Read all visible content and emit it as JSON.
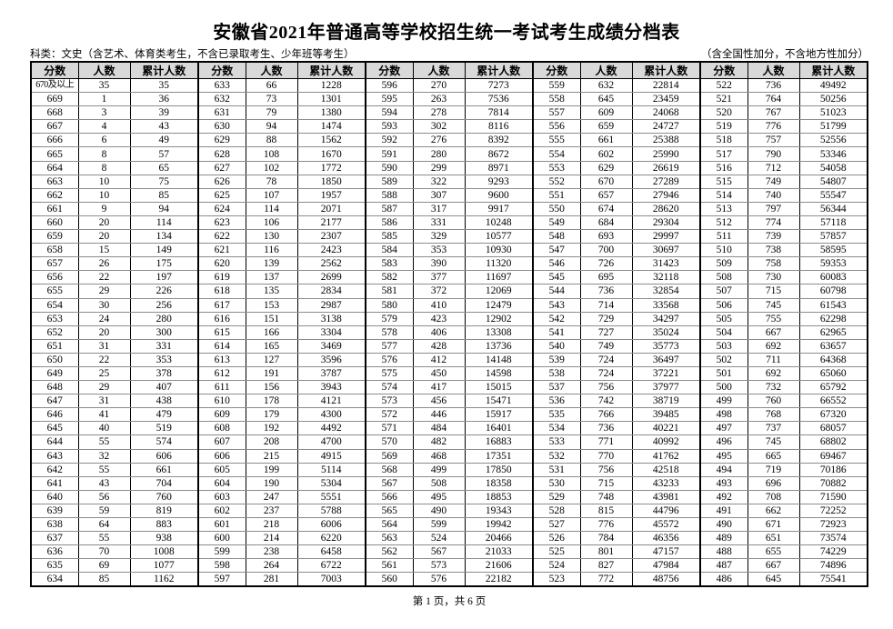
{
  "page": {
    "title": "安徽省2021年普通高等学校招生统一考试考生成绩分档表",
    "category_note": "科类：文史（含艺术、体育类考生，不含已录取考生、少年班等考生）",
    "bonus_note": "（含全国性加分，不含地方性加分）",
    "page_indicator": "第 1 页，共 6 页"
  },
  "colors": {
    "header_bg": "#d9d9d9",
    "grid_horizontal": "#8c8c8c",
    "grid_vertical": "#000000",
    "text": "#000000"
  },
  "table": {
    "headers": [
      "分数",
      "人数",
      "累计人数"
    ],
    "group_count": 5,
    "rows": [
      [
        "670及以上",
        "35",
        "35",
        "633",
        "66",
        "1228",
        "596",
        "270",
        "7273",
        "559",
        "632",
        "22814",
        "522",
        "736",
        "49492"
      ],
      [
        "669",
        "1",
        "36",
        "632",
        "73",
        "1301",
        "595",
        "263",
        "7536",
        "558",
        "645",
        "23459",
        "521",
        "764",
        "50256"
      ],
      [
        "668",
        "3",
        "39",
        "631",
        "79",
        "1380",
        "594",
        "278",
        "7814",
        "557",
        "609",
        "24068",
        "520",
        "767",
        "51023"
      ],
      [
        "667",
        "4",
        "43",
        "630",
        "94",
        "1474",
        "593",
        "302",
        "8116",
        "556",
        "659",
        "24727",
        "519",
        "776",
        "51799"
      ],
      [
        "666",
        "6",
        "49",
        "629",
        "88",
        "1562",
        "592",
        "276",
        "8392",
        "555",
        "661",
        "25388",
        "518",
        "757",
        "52556"
      ],
      [
        "665",
        "8",
        "57",
        "628",
        "108",
        "1670",
        "591",
        "280",
        "8672",
        "554",
        "602",
        "25990",
        "517",
        "790",
        "53346"
      ],
      [
        "664",
        "8",
        "65",
        "627",
        "102",
        "1772",
        "590",
        "299",
        "8971",
        "553",
        "629",
        "26619",
        "516",
        "712",
        "54058"
      ],
      [
        "663",
        "10",
        "75",
        "626",
        "78",
        "1850",
        "589",
        "322",
        "9293",
        "552",
        "670",
        "27289",
        "515",
        "749",
        "54807"
      ],
      [
        "662",
        "10",
        "85",
        "625",
        "107",
        "1957",
        "588",
        "307",
        "9600",
        "551",
        "657",
        "27946",
        "514",
        "740",
        "55547"
      ],
      [
        "661",
        "9",
        "94",
        "624",
        "114",
        "2071",
        "587",
        "317",
        "9917",
        "550",
        "674",
        "28620",
        "513",
        "797",
        "56344"
      ],
      [
        "660",
        "20",
        "114",
        "623",
        "106",
        "2177",
        "586",
        "331",
        "10248",
        "549",
        "684",
        "29304",
        "512",
        "774",
        "57118"
      ],
      [
        "659",
        "20",
        "134",
        "622",
        "130",
        "2307",
        "585",
        "329",
        "10577",
        "548",
        "693",
        "29997",
        "511",
        "739",
        "57857"
      ],
      [
        "658",
        "15",
        "149",
        "621",
        "116",
        "2423",
        "584",
        "353",
        "10930",
        "547",
        "700",
        "30697",
        "510",
        "738",
        "58595"
      ],
      [
        "657",
        "26",
        "175",
        "620",
        "139",
        "2562",
        "583",
        "390",
        "11320",
        "546",
        "726",
        "31423",
        "509",
        "758",
        "59353"
      ],
      [
        "656",
        "22",
        "197",
        "619",
        "137",
        "2699",
        "582",
        "377",
        "11697",
        "545",
        "695",
        "32118",
        "508",
        "730",
        "60083"
      ],
      [
        "655",
        "29",
        "226",
        "618",
        "135",
        "2834",
        "581",
        "372",
        "12069",
        "544",
        "736",
        "32854",
        "507",
        "715",
        "60798"
      ],
      [
        "654",
        "30",
        "256",
        "617",
        "153",
        "2987",
        "580",
        "410",
        "12479",
        "543",
        "714",
        "33568",
        "506",
        "745",
        "61543"
      ],
      [
        "653",
        "24",
        "280",
        "616",
        "151",
        "3138",
        "579",
        "423",
        "12902",
        "542",
        "729",
        "34297",
        "505",
        "755",
        "62298"
      ],
      [
        "652",
        "20",
        "300",
        "615",
        "166",
        "3304",
        "578",
        "406",
        "13308",
        "541",
        "727",
        "35024",
        "504",
        "667",
        "62965"
      ],
      [
        "651",
        "31",
        "331",
        "614",
        "165",
        "3469",
        "577",
        "428",
        "13736",
        "540",
        "749",
        "35773",
        "503",
        "692",
        "63657"
      ],
      [
        "650",
        "22",
        "353",
        "613",
        "127",
        "3596",
        "576",
        "412",
        "14148",
        "539",
        "724",
        "36497",
        "502",
        "711",
        "64368"
      ],
      [
        "649",
        "25",
        "378",
        "612",
        "191",
        "3787",
        "575",
        "450",
        "14598",
        "538",
        "724",
        "37221",
        "501",
        "692",
        "65060"
      ],
      [
        "648",
        "29",
        "407",
        "611",
        "156",
        "3943",
        "574",
        "417",
        "15015",
        "537",
        "756",
        "37977",
        "500",
        "732",
        "65792"
      ],
      [
        "647",
        "31",
        "438",
        "610",
        "178",
        "4121",
        "573",
        "456",
        "15471",
        "536",
        "742",
        "38719",
        "499",
        "760",
        "66552"
      ],
      [
        "646",
        "41",
        "479",
        "609",
        "179",
        "4300",
        "572",
        "446",
        "15917",
        "535",
        "766",
        "39485",
        "498",
        "768",
        "67320"
      ],
      [
        "645",
        "40",
        "519",
        "608",
        "192",
        "4492",
        "571",
        "484",
        "16401",
        "534",
        "736",
        "40221",
        "497",
        "737",
        "68057"
      ],
      [
        "644",
        "55",
        "574",
        "607",
        "208",
        "4700",
        "570",
        "482",
        "16883",
        "533",
        "771",
        "40992",
        "496",
        "745",
        "68802"
      ],
      [
        "643",
        "32",
        "606",
        "606",
        "215",
        "4915",
        "569",
        "468",
        "17351",
        "532",
        "770",
        "41762",
        "495",
        "665",
        "69467"
      ],
      [
        "642",
        "55",
        "661",
        "605",
        "199",
        "5114",
        "568",
        "499",
        "17850",
        "531",
        "756",
        "42518",
        "494",
        "719",
        "70186"
      ],
      [
        "641",
        "43",
        "704",
        "604",
        "190",
        "5304",
        "567",
        "508",
        "18358",
        "530",
        "715",
        "43233",
        "493",
        "696",
        "70882"
      ],
      [
        "640",
        "56",
        "760",
        "603",
        "247",
        "5551",
        "566",
        "495",
        "18853",
        "529",
        "748",
        "43981",
        "492",
        "708",
        "71590"
      ],
      [
        "639",
        "59",
        "819",
        "602",
        "237",
        "5788",
        "565",
        "490",
        "19343",
        "528",
        "815",
        "44796",
        "491",
        "662",
        "72252"
      ],
      [
        "638",
        "64",
        "883",
        "601",
        "218",
        "6006",
        "564",
        "599",
        "19942",
        "527",
        "776",
        "45572",
        "490",
        "671",
        "72923"
      ],
      [
        "637",
        "55",
        "938",
        "600",
        "214",
        "6220",
        "563",
        "524",
        "20466",
        "526",
        "784",
        "46356",
        "489",
        "651",
        "73574"
      ],
      [
        "636",
        "70",
        "1008",
        "599",
        "238",
        "6458",
        "562",
        "567",
        "21033",
        "525",
        "801",
        "47157",
        "488",
        "655",
        "74229"
      ],
      [
        "635",
        "69",
        "1077",
        "598",
        "264",
        "6722",
        "561",
        "573",
        "21606",
        "524",
        "827",
        "47984",
        "487",
        "667",
        "74896"
      ],
      [
        "634",
        "85",
        "1162",
        "597",
        "281",
        "7003",
        "560",
        "576",
        "22182",
        "523",
        "772",
        "48756",
        "486",
        "645",
        "75541"
      ]
    ]
  }
}
